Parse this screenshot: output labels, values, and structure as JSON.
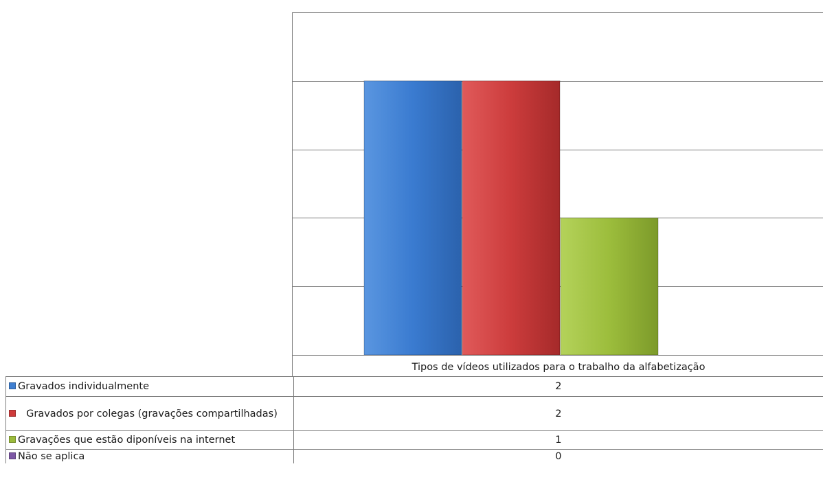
{
  "chart_data": {
    "type": "bar",
    "categories": [
      "Tipos de vídeos utilizados para o trabalho da alfabetização"
    ],
    "series": [
      {
        "name": "Gravados individualmente",
        "values": [
          2
        ],
        "color": "#3f7fd1"
      },
      {
        "name": "Gravados por colegas (gravações compartilhadas)",
        "values": [
          2
        ],
        "color": "#cf3b3b"
      },
      {
        "name": "Gravações que estão diponíveis na internet",
        "values": [
          1
        ],
        "color": "#9bbb3b"
      },
      {
        "name": "Não se aplica",
        "values": [
          0
        ],
        "color": "#7d57a5"
      }
    ],
    "ylim": [
      0,
      2.5
    ],
    "yticks": [
      0,
      0.5,
      1,
      1.5,
      2,
      2.5
    ],
    "grid": true,
    "legend": "data-table-left"
  }
}
